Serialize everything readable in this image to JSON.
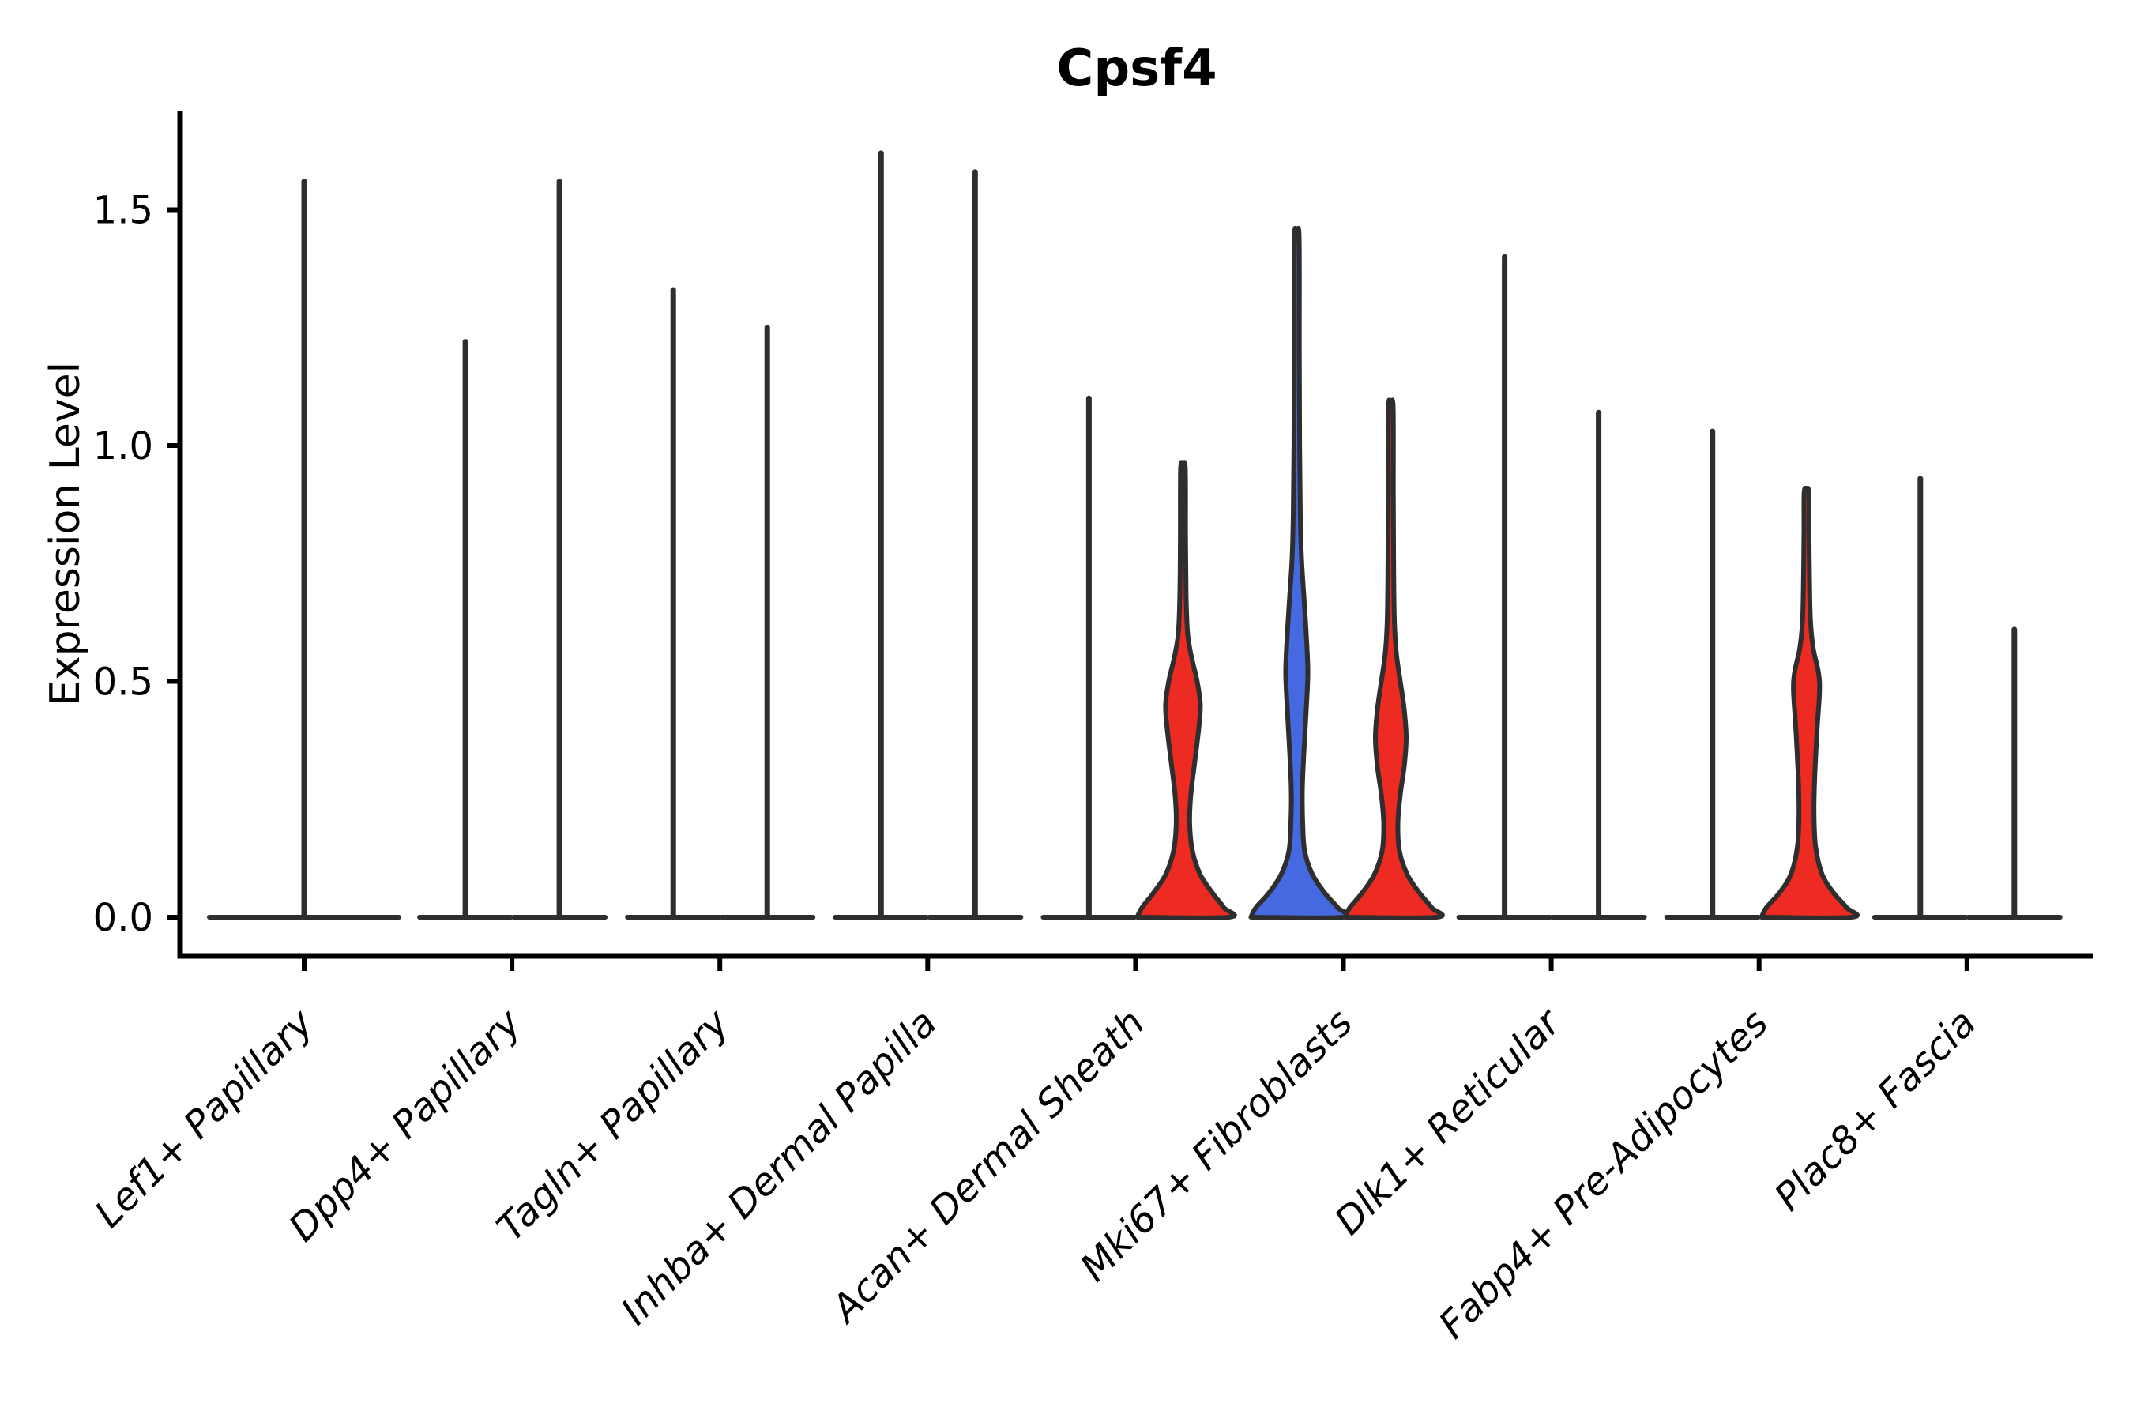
{
  "chart_data": {
    "type": "violin",
    "title": "Cpsf4",
    "ylabel": "Expression Level",
    "xlabel": "",
    "ylim": [
      -0.08,
      1.71
    ],
    "grid": false,
    "legend_position": "none",
    "yticks": [
      {
        "value": 0.0,
        "label": "0.0"
      },
      {
        "value": 0.5,
        "label": "0.5"
      },
      {
        "value": 1.0,
        "label": "1.0"
      },
      {
        "value": 1.5,
        "label": "1.5"
      }
    ],
    "colors": {
      "red": "#EE2B23",
      "blue": "#4569E1",
      "violin_outline": "#2E2E2E",
      "axis": "#000000",
      "text": "#000000",
      "background": "#FFFFFF"
    },
    "categories": [
      {
        "label": "Lef1+ Papillary",
        "violins": [
          {
            "position": "center",
            "max": 1.56,
            "fill": "none",
            "shape": "spike"
          }
        ]
      },
      {
        "label": "Dpp4+ Papillary",
        "violins": [
          {
            "position": "left",
            "max": 1.22,
            "fill": "none",
            "shape": "spike"
          },
          {
            "position": "right",
            "max": 1.56,
            "fill": "none",
            "shape": "spike"
          }
        ]
      },
      {
        "label": "Tagln+ Papillary",
        "violins": [
          {
            "position": "left",
            "max": 1.33,
            "fill": "none",
            "shape": "spike"
          },
          {
            "position": "right",
            "max": 1.25,
            "fill": "none",
            "shape": "spike"
          }
        ]
      },
      {
        "label": "Inhba+ Dermal Papilla",
        "violins": [
          {
            "position": "left",
            "max": 1.62,
            "fill": "none",
            "shape": "spike"
          },
          {
            "position": "right",
            "max": 1.58,
            "fill": "none",
            "shape": "spike"
          }
        ]
      },
      {
        "label": "Acan+ Dermal Sheath",
        "violins": [
          {
            "position": "left",
            "max": 1.1,
            "fill": "none",
            "shape": "spike"
          },
          {
            "position": "right",
            "max": 0.95,
            "fill": "red",
            "shape": "density",
            "profile": [
              [
                0,
                58
              ],
              [
                0.02,
                52
              ],
              [
                0.05,
                38
              ],
              [
                0.09,
                22
              ],
              [
                0.14,
                12
              ],
              [
                0.2,
                8.5
              ],
              [
                0.26,
                10
              ],
              [
                0.33,
                15
              ],
              [
                0.4,
                20
              ],
              [
                0.45,
                22
              ],
              [
                0.5,
                18
              ],
              [
                0.55,
                11
              ],
              [
                0.6,
                6
              ],
              [
                0.68,
                4
              ],
              [
                0.8,
                3.3
              ],
              [
                0.95,
                3
              ]
            ]
          }
        ]
      },
      {
        "label": "Mki67+ Fibroblasts",
        "violins": [
          {
            "position": "left",
            "max": 1.44,
            "fill": "blue",
            "shape": "density",
            "profile": [
              [
                0,
                58
              ],
              [
                0.02,
                52
              ],
              [
                0.05,
                36
              ],
              [
                0.09,
                20
              ],
              [
                0.14,
                10
              ],
              [
                0.2,
                7.5
              ],
              [
                0.27,
                7
              ],
              [
                0.35,
                9
              ],
              [
                0.44,
                12
              ],
              [
                0.52,
                14
              ],
              [
                0.6,
                12
              ],
              [
                0.68,
                9
              ],
              [
                0.76,
                6
              ],
              [
                0.85,
                4.5
              ],
              [
                1.0,
                3.6
              ],
              [
                1.2,
                3.2
              ],
              [
                1.44,
                3
              ]
            ]
          },
          {
            "position": "right",
            "max": 1.08,
            "fill": "red",
            "shape": "density",
            "profile": [
              [
                0,
                58
              ],
              [
                0.02,
                52
              ],
              [
                0.05,
                37
              ],
              [
                0.09,
                21
              ],
              [
                0.14,
                11
              ],
              [
                0.2,
                9
              ],
              [
                0.26,
                12
              ],
              [
                0.32,
                17
              ],
              [
                0.38,
                19.5
              ],
              [
                0.44,
                17
              ],
              [
                0.5,
                12
              ],
              [
                0.56,
                7
              ],
              [
                0.63,
                4.5
              ],
              [
                0.75,
                3.6
              ],
              [
                0.9,
                3.2
              ],
              [
                1.08,
                3
              ]
            ]
          }
        ]
      },
      {
        "label": "Dlk1+ Reticular",
        "violins": [
          {
            "position": "left",
            "max": 1.4,
            "fill": "none",
            "shape": "spike"
          },
          {
            "position": "right",
            "max": 1.07,
            "fill": "none",
            "shape": "spike"
          }
        ]
      },
      {
        "label": "Fabp4+ Pre-Adipocytes",
        "violins": [
          {
            "position": "left",
            "max": 1.03,
            "fill": "none",
            "shape": "spike"
          },
          {
            "position": "right",
            "max": 0.9,
            "fill": "red",
            "shape": "density",
            "profile": [
              [
                0,
                57
              ],
              [
                0.02,
                51
              ],
              [
                0.05,
                35
              ],
              [
                0.09,
                20
              ],
              [
                0.15,
                11.5
              ],
              [
                0.22,
                9.5
              ],
              [
                0.3,
                10.5
              ],
              [
                0.4,
                13.5
              ],
              [
                0.48,
                16.5
              ],
              [
                0.52,
                15
              ],
              [
                0.57,
                8.5
              ],
              [
                0.63,
                5
              ],
              [
                0.72,
                3.8
              ],
              [
                0.82,
                3.2
              ],
              [
                0.9,
                3
              ]
            ]
          }
        ]
      },
      {
        "label": "Plac8+ Fascia",
        "violins": [
          {
            "position": "left",
            "max": 0.93,
            "fill": "none",
            "shape": "spike"
          },
          {
            "position": "right",
            "max": 0.61,
            "fill": "none",
            "shape": "spike"
          }
        ]
      }
    ]
  }
}
